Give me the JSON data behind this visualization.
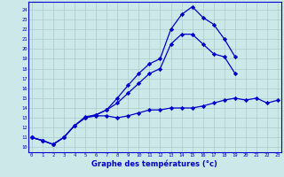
{
  "xlabel": "Graphe des températures (°c)",
  "background_color": "#cce8e8",
  "grid_color": "#aacccc",
  "line_color": "#0000cc",
  "x": [
    0,
    1,
    2,
    3,
    4,
    5,
    6,
    7,
    8,
    9,
    10,
    11,
    12,
    13,
    14,
    15,
    16,
    17,
    18,
    19,
    20,
    21,
    22,
    23
  ],
  "line_top": [
    11.0,
    10.7,
    10.3,
    11.0,
    12.2,
    13.1,
    13.3,
    13.8,
    15.0,
    16.3,
    17.5,
    18.5,
    19.0,
    22.0,
    23.5,
    24.3,
    23.2,
    22.5,
    21.0,
    19.2,
    null,
    null,
    null,
    null
  ],
  "line_mid": [
    11.0,
    10.7,
    10.3,
    11.0,
    12.2,
    13.0,
    13.3,
    13.8,
    14.5,
    15.5,
    16.5,
    17.5,
    18.0,
    20.5,
    21.5,
    21.5,
    20.5,
    19.5,
    19.2,
    17.5,
    null,
    null,
    null,
    null
  ],
  "line_bot": [
    11.0,
    10.7,
    10.3,
    11.0,
    12.2,
    13.0,
    13.2,
    13.2,
    13.0,
    13.2,
    13.5,
    13.8,
    13.8,
    14.0,
    14.0,
    14.0,
    14.2,
    14.5,
    14.8,
    15.0,
    14.8,
    15.0,
    14.5,
    14.8
  ],
  "ylim": [
    9.5,
    24.8
  ],
  "yticks": [
    10,
    11,
    12,
    13,
    14,
    15,
    16,
    17,
    18,
    19,
    20,
    21,
    22,
    23,
    24
  ],
  "xlim": [
    -0.3,
    23.3
  ],
  "xticks": [
    0,
    1,
    2,
    3,
    4,
    5,
    6,
    7,
    8,
    9,
    10,
    11,
    12,
    13,
    14,
    15,
    16,
    17,
    18,
    19,
    20,
    21,
    22,
    23
  ]
}
